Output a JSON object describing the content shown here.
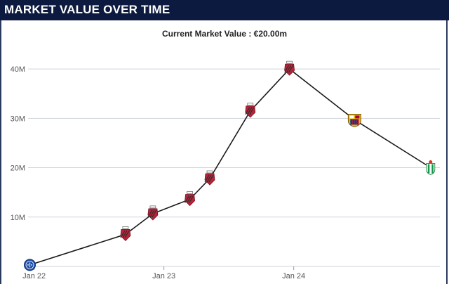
{
  "header": {
    "title": "MARKET VALUE OVER TIME"
  },
  "chart_data": {
    "type": "line",
    "title": "Current Market Value : €20.00m",
    "xlabel": "",
    "ylabel": "",
    "x_tick_labels": [
      "Jan 22",
      "Jan 23",
      "Jan 24"
    ],
    "y_tick_labels": [
      "10M",
      "20M",
      "30M",
      "40M"
    ],
    "y_ticks": [
      10,
      20,
      30,
      40
    ],
    "ylim": [
      0,
      44
    ],
    "xlim": [
      "2021-12-15",
      "2025-02-15"
    ],
    "grid": true,
    "legend": "none",
    "series": [
      {
        "points": [
          {
            "x": "2021-12-20",
            "y": 0.3,
            "club_icon": "cruzeiro-crest-icon"
          },
          {
            "x": "2022-09-15",
            "y": 6.5,
            "club_icon": "athletico-paranaense-crest-icon"
          },
          {
            "x": "2022-12-01",
            "y": 10.7,
            "club_icon": "athletico-paranaense-crest-icon"
          },
          {
            "x": "2023-03-15",
            "y": 13.6,
            "club_icon": "athletico-paranaense-crest-icon"
          },
          {
            "x": "2023-05-10",
            "y": 17.8,
            "club_icon": "athletico-paranaense-crest-icon"
          },
          {
            "x": "2023-09-01",
            "y": 31.5,
            "club_icon": "athletico-paranaense-crest-icon"
          },
          {
            "x": "2023-12-20",
            "y": 40.0,
            "club_icon": "athletico-paranaense-crest-icon"
          },
          {
            "x": "2024-06-20",
            "y": 29.7,
            "club_icon": "barcelona-crest-icon"
          },
          {
            "x": "2025-01-20",
            "y": 20.0,
            "club_icon": "real-betis-crest-icon"
          }
        ]
      }
    ],
    "colors": {
      "line": "#1a1a1a",
      "grid": "#cfd3db",
      "cap_red": "#b5253a",
      "cap_black": "#2a2a2a",
      "barca_blue": "#0b3f8f",
      "barca_red": "#a50044",
      "barca_gold": "#e8b50e",
      "betis_green": "#0f9a47",
      "cruzeiro_blue": "#1e4fa8"
    }
  }
}
